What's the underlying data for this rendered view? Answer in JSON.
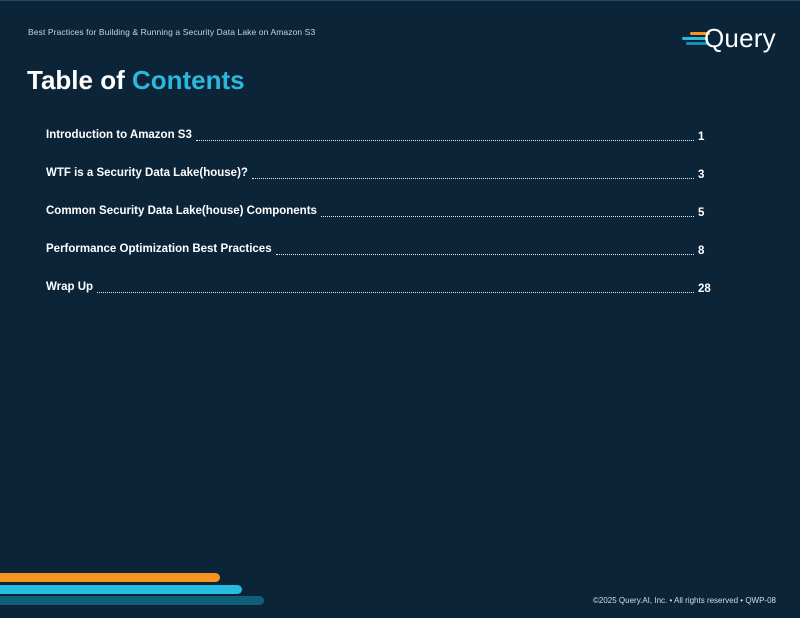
{
  "header": {
    "doc_title": "Best Practices for Building & Running a Security Data Lake on Amazon S3",
    "logo_text": "Query"
  },
  "toc": {
    "title_part1": "Table of",
    "title_part2": "Contents",
    "items": [
      {
        "label": "Introduction to Amazon S3",
        "page": "1"
      },
      {
        "label": "WTF is a Security Data Lake(house)?",
        "page": "3"
      },
      {
        "label": "Common Security Data Lake(house) Components",
        "page": "5"
      },
      {
        "label": "Performance Optimization Best Practices",
        "page": "8"
      },
      {
        "label": "Wrap Up",
        "page": "28"
      }
    ]
  },
  "footer": {
    "text": "©2025 Query.AI, Inc.  •  All rights reserved  •  QWP-08"
  },
  "colors": {
    "background": "#0c2438",
    "accent_cyan": "#2ab8dc",
    "accent_orange": "#f7931e",
    "accent_teal": "#0f5f7a"
  }
}
